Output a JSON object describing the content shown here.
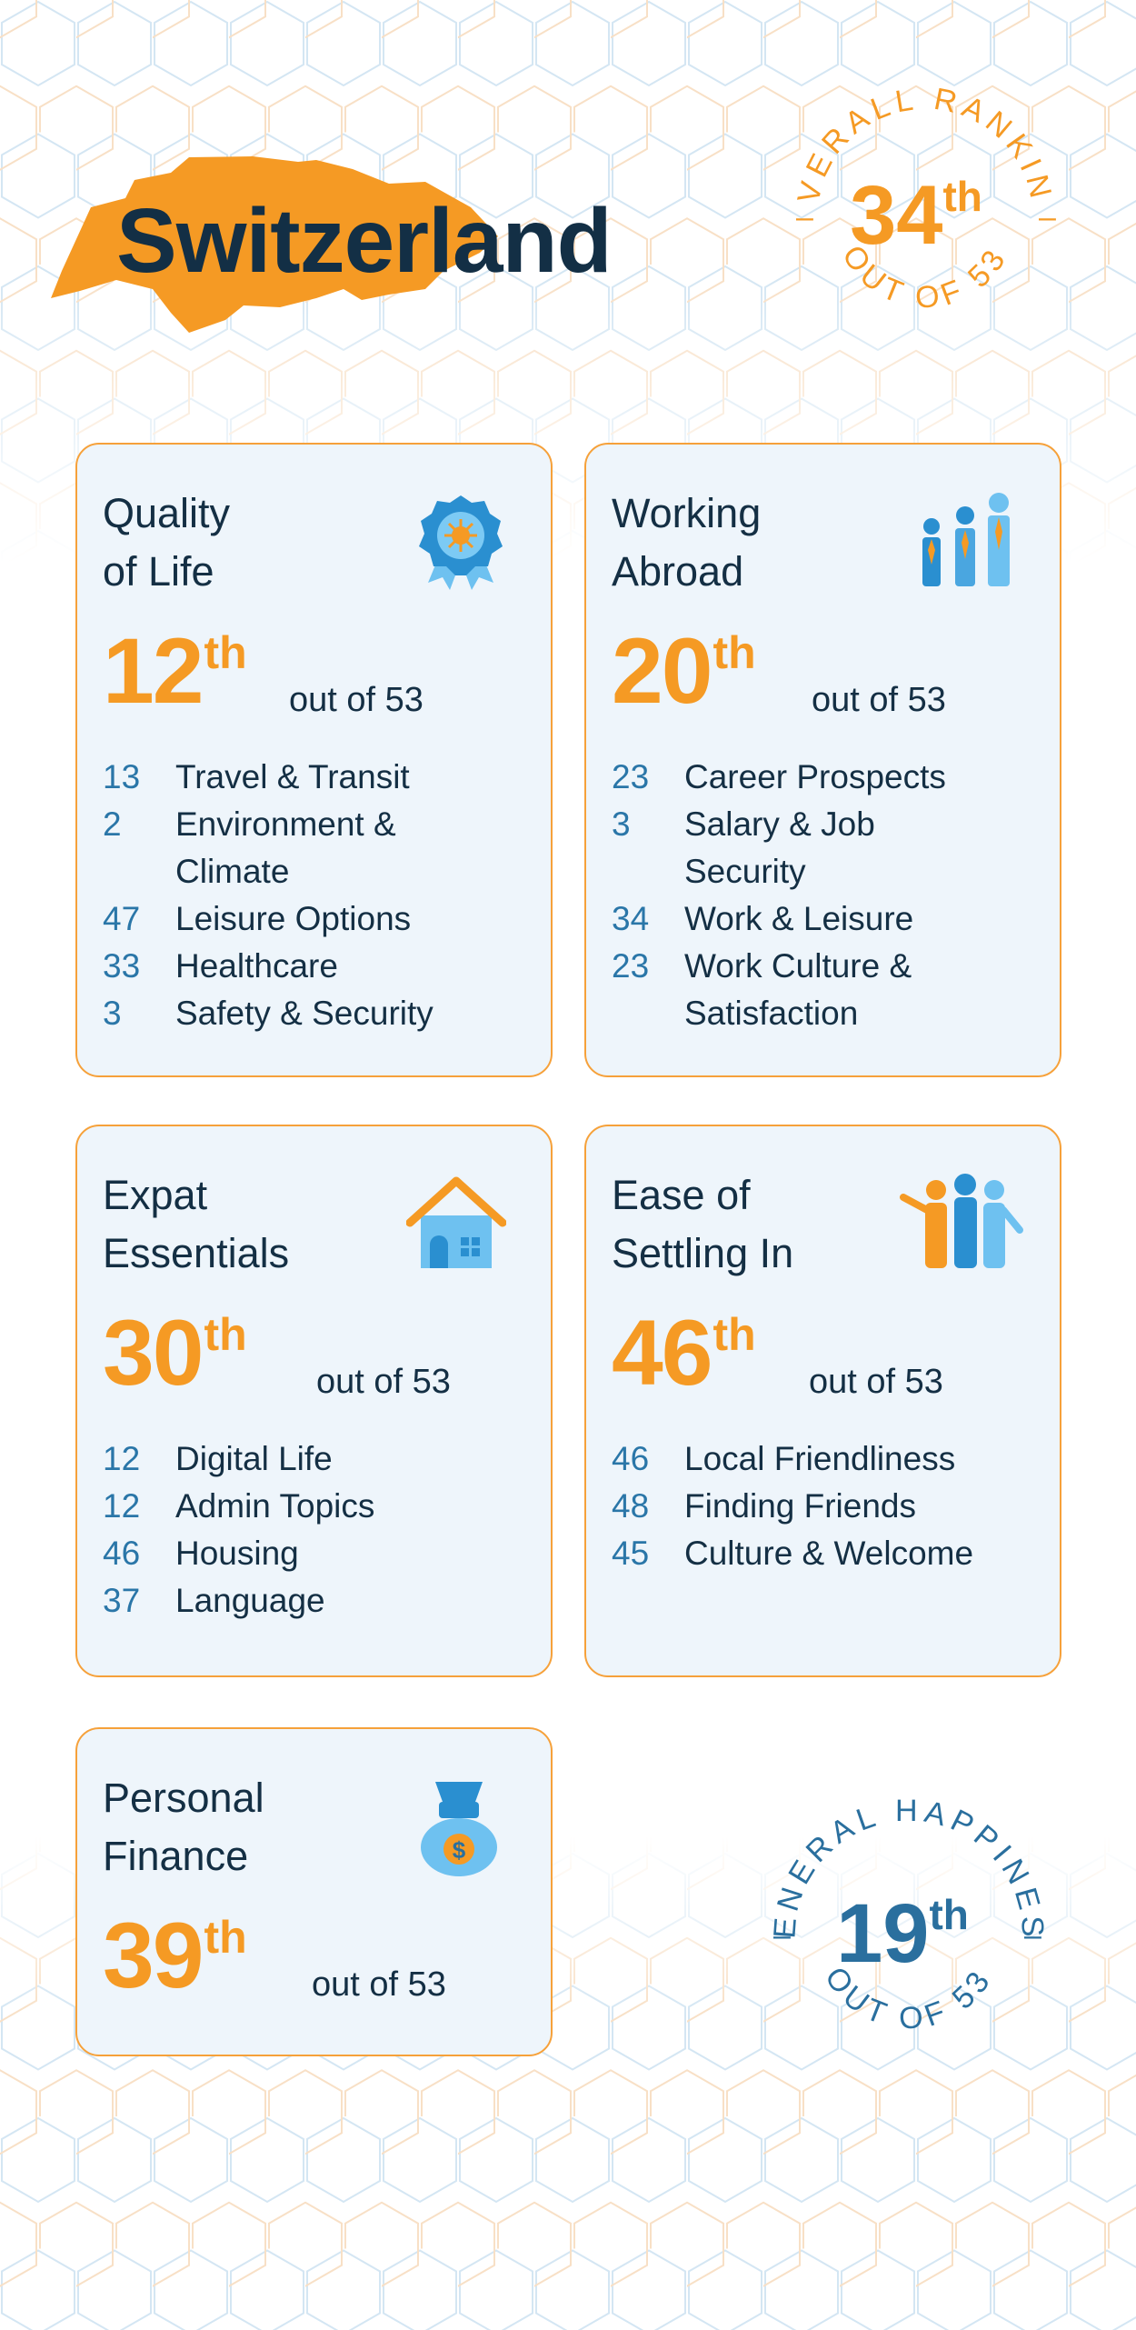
{
  "page": {
    "country": "Switzerland",
    "colors": {
      "accent": "#f59a24",
      "blue": "#2a76a8",
      "text": "#142f44",
      "card_bg": "#eef5fb"
    }
  },
  "overall": {
    "label": "OVERALL RANKING",
    "rank": "34",
    "suffix": "th",
    "out_of": "OUT OF 53"
  },
  "happiness": {
    "label": "GENERAL HAPPINESS",
    "rank": "19",
    "suffix": "th",
    "out_of": "OUT OF 53"
  },
  "cards": [
    {
      "title": [
        "Quality",
        "of Life"
      ],
      "icon": "award-ribbon-icon",
      "rank": "12",
      "suffix": "th",
      "out_of": "out of 53",
      "metrics": [
        {
          "value": "13",
          "label": "Travel & Transit"
        },
        {
          "value": "2",
          "label": "Environment & Climate"
        },
        {
          "value": "47",
          "label": "Leisure Options"
        },
        {
          "value": "33",
          "label": "Healthcare"
        },
        {
          "value": "3",
          "label": "Safety & Security"
        }
      ]
    },
    {
      "title": [
        "Working",
        "Abroad"
      ],
      "icon": "business-people-icon",
      "rank": "20",
      "suffix": "th",
      "out_of": "out of 53",
      "metrics": [
        {
          "value": "23",
          "label": "Career Prospects"
        },
        {
          "value": "3",
          "label": "Salary & Job Security"
        },
        {
          "value": "34",
          "label": "Work & Leisure"
        },
        {
          "value": "23",
          "label": "Work Culture & Satisfaction"
        }
      ]
    },
    {
      "title": [
        "Expat",
        "Essentials"
      ],
      "icon": "house-icon",
      "rank": "30",
      "suffix": "th",
      "out_of": "out of 53",
      "metrics": [
        {
          "value": "12",
          "label": "Digital Life"
        },
        {
          "value": "12",
          "label": "Admin Topics"
        },
        {
          "value": "46",
          "label": "Housing"
        },
        {
          "value": "37",
          "label": "Language"
        }
      ]
    },
    {
      "title": [
        "Ease of",
        "Settling In"
      ],
      "icon": "welcoming-people-icon",
      "rank": "46",
      "suffix": "th",
      "out_of": "out of 53",
      "metrics": [
        {
          "value": "46",
          "label": "Local Friendliness"
        },
        {
          "value": "48",
          "label": "Finding Friends"
        },
        {
          "value": "45",
          "label": "Culture & Welcome"
        }
      ]
    },
    {
      "title": [
        "Personal",
        "Finance"
      ],
      "icon": "money-bag-icon",
      "rank": "39",
      "suffix": "th",
      "out_of": "out of 53",
      "metrics": []
    }
  ]
}
